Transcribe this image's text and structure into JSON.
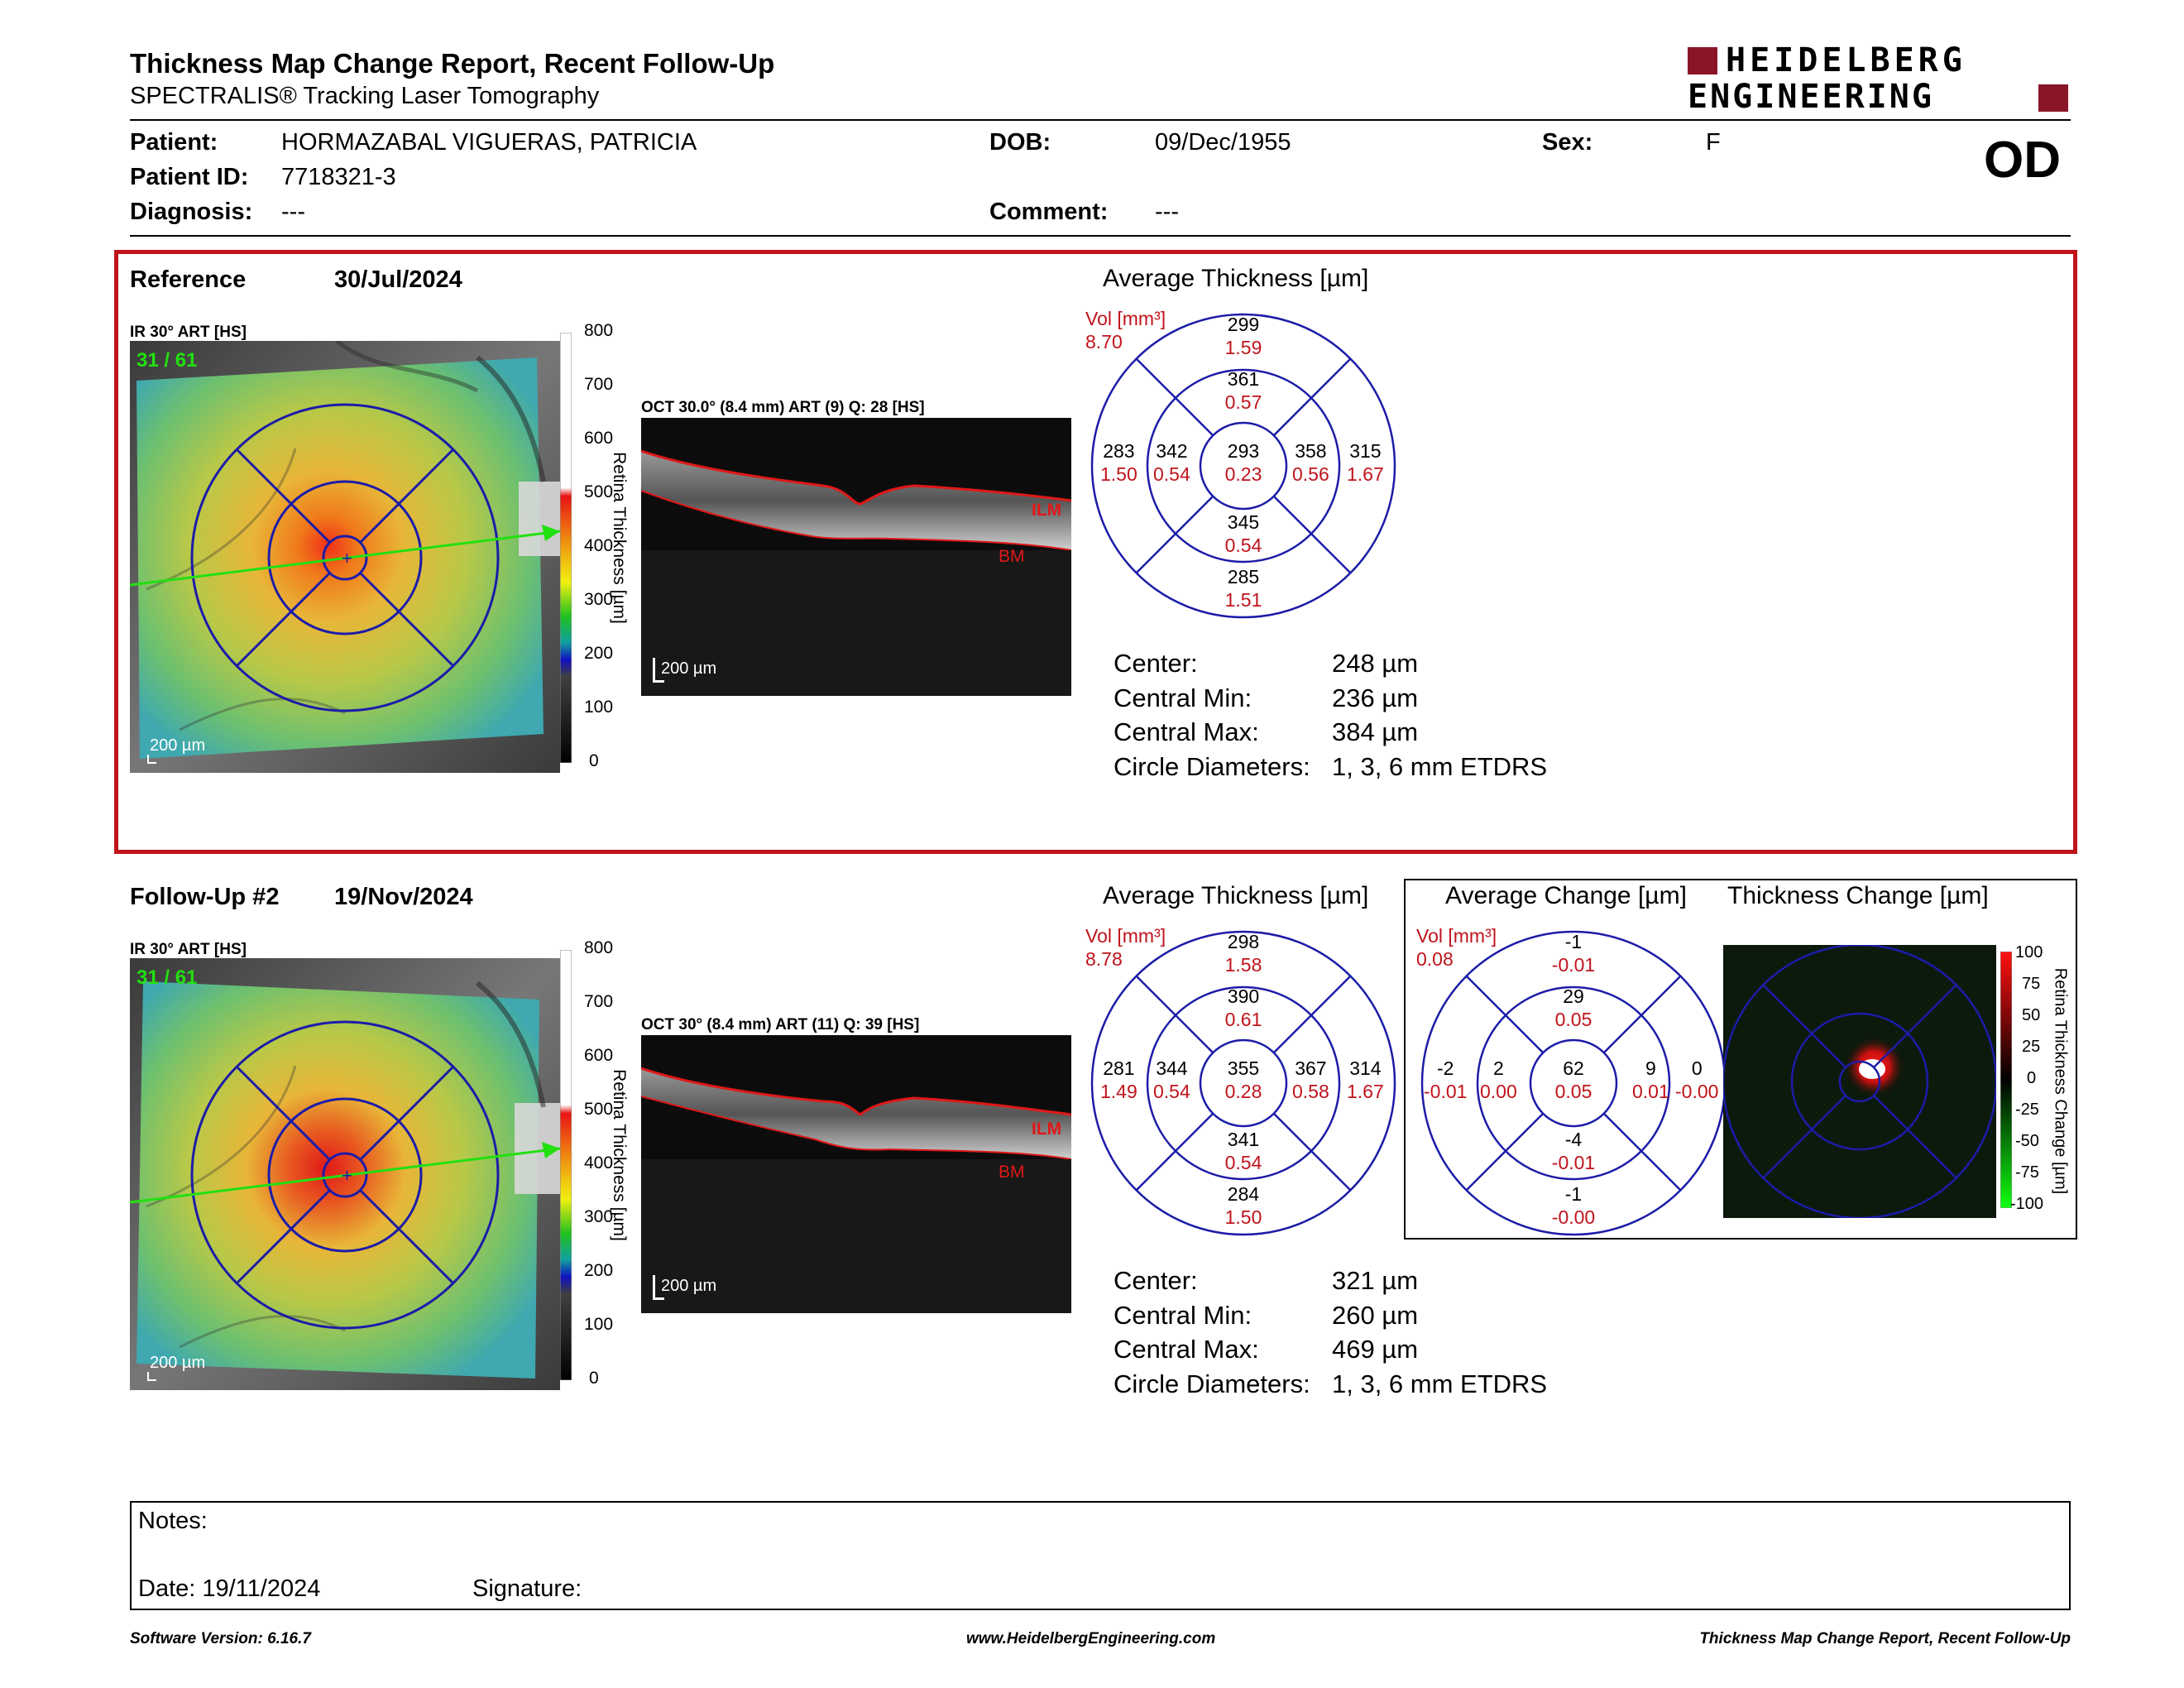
{
  "header": {
    "title": "Thickness Map Change Report, Recent Follow-Up",
    "subtitle": "SPECTRALIS® Tracking Laser Tomography",
    "logo_line1": "HEIDELBERG",
    "logo_line2": "ENGINEERING",
    "eye": "OD"
  },
  "patient": {
    "patient_label": "Patient:",
    "patient_value": "HORMAZABAL VIGUERAS, PATRICIA",
    "id_label": "Patient ID:",
    "id_value": "7718321-3",
    "diagnosis_label": "Diagnosis:",
    "diagnosis_value": "---",
    "dob_label": "DOB:",
    "dob_value": "09/Dec/1955",
    "comment_label": "Comment:",
    "comment_value": "---",
    "sex_label": "Sex:",
    "sex_value": "F"
  },
  "reference": {
    "label": "Reference",
    "date": "30/Jul/2024",
    "ir_label": "IR 30° ART [HS]",
    "frames": "31 / 61",
    "scale": "200 µm",
    "oct_label": "OCT 30.0° (8.4 mm) ART (9) Q: 28 [HS]",
    "oct_scale": "200 µm",
    "ilm": "ILM",
    "bm": "BM",
    "colorbar_ticks": [
      "800",
      "700",
      "600",
      "500",
      "400",
      "300",
      "200",
      "100",
      "0"
    ],
    "colorbar_title": "Retina Thickness [µm]",
    "avg_title": "Average Thickness [µm]",
    "vol_label": "Vol [mm³]",
    "vol_value": "8.70",
    "etdrs": {
      "outer_sup": [
        "299",
        "1.59"
      ],
      "inner_sup": [
        "361",
        "0.57"
      ],
      "outer_tmp": [
        "283",
        "1.50"
      ],
      "inner_tmp": [
        "342",
        "0.54"
      ],
      "center": [
        "293",
        "0.23"
      ],
      "inner_nas": [
        "358",
        "0.56"
      ],
      "outer_nas": [
        "315",
        "1.67"
      ],
      "inner_inf": [
        "345",
        "0.54"
      ],
      "outer_inf": [
        "285",
        "1.51"
      ]
    },
    "stats": [
      {
        "label": "Center:",
        "value": "248 µm"
      },
      {
        "label": "Central Min:",
        "value": "236 µm"
      },
      {
        "label": "Central Max:",
        "value": "384 µm"
      },
      {
        "label": "Circle Diameters:",
        "value": "1, 3, 6 mm ETDRS"
      }
    ]
  },
  "followup": {
    "label": "Follow-Up #2",
    "date": "19/Nov/2024",
    "ir_label": "IR 30° ART [HS]",
    "frames": "31 / 61",
    "scale": "200 µm",
    "oct_label": "OCT 30° (8.4 mm) ART (11) Q: 39 [HS]",
    "oct_scale": "200 µm",
    "ilm": "ILM",
    "bm": "BM",
    "colorbar_ticks": [
      "800",
      "700",
      "600",
      "500",
      "400",
      "300",
      "200",
      "100",
      "0"
    ],
    "colorbar_title": "Retina Thickness [µm]",
    "avg_title": "Average Thickness [µm]",
    "vol_label": "Vol [mm³]",
    "vol_value": "8.78",
    "etdrs": {
      "outer_sup": [
        "298",
        "1.58"
      ],
      "inner_sup": [
        "390",
        "0.61"
      ],
      "outer_tmp": [
        "281",
        "1.49"
      ],
      "inner_tmp": [
        "344",
        "0.54"
      ],
      "center": [
        "355",
        "0.28"
      ],
      "inner_nas": [
        "367",
        "0.58"
      ],
      "outer_nas": [
        "314",
        "1.67"
      ],
      "inner_inf": [
        "341",
        "0.54"
      ],
      "outer_inf": [
        "284",
        "1.50"
      ]
    },
    "stats": [
      {
        "label": "Center:",
        "value": "321 µm"
      },
      {
        "label": "Central Min:",
        "value": "260 µm"
      },
      {
        "label": "Central Max:",
        "value": "469 µm"
      },
      {
        "label": "Circle Diameters:",
        "value": "1, 3, 6 mm ETDRS"
      }
    ],
    "change": {
      "avg_title": "Average Change [µm]",
      "map_title": "Thickness Change [µm]",
      "vol_label": "Vol [mm³]",
      "vol_value": "0.08",
      "etdrs": {
        "outer_sup": [
          "-1",
          "-0.01"
        ],
        "inner_sup": [
          "29",
          "0.05"
        ],
        "outer_tmp": [
          "-2",
          "-0.01"
        ],
        "inner_tmp": [
          "2",
          "0.00"
        ],
        "center": [
          "62",
          "0.05"
        ],
        "inner_nas": [
          "9",
          "0.01"
        ],
        "outer_nas": [
          "0",
          "-0.00"
        ],
        "inner_inf": [
          "-4",
          "-0.01"
        ],
        "outer_inf": [
          "-1",
          "-0.00"
        ]
      },
      "colorbar_ticks": [
        "100",
        "75",
        "50",
        "25",
        "0",
        "-25",
        "-50",
        "-75",
        "-100"
      ],
      "colorbar_title": "Retina Thickness Change [µm]"
    }
  },
  "notes": {
    "notes_label": "Notes:",
    "date_label": "Date: 19/11/2024",
    "signature_label": "Signature:"
  },
  "footer": {
    "software": "Software Version: 6.16.7",
    "website": "www.HeidelbergEngineering.com",
    "report": "Thickness Map Change Report, Recent Follow-Up"
  },
  "colors": {
    "accent": "#c0141c",
    "grid": "#1c1ca8",
    "vol_red": "#c0141c"
  }
}
